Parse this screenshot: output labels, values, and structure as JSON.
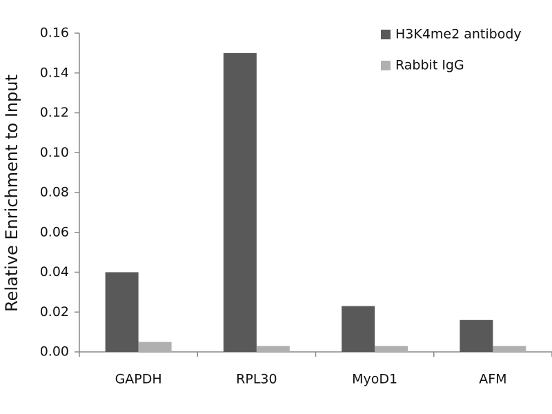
{
  "chart_data": {
    "type": "bar",
    "y_label": "Relative Enrichment to Input",
    "categories": [
      "GAPDH",
      "RPL30",
      "MyoD1",
      "AFM"
    ],
    "series": [
      {
        "name": "H3K4me2 antibody",
        "color": "#595959",
        "values": [
          0.04,
          0.15,
          0.023,
          0.016
        ]
      },
      {
        "name": "Rabbit IgG",
        "color": "#b0b0b0",
        "values": [
          0.005,
          0.003,
          0.003,
          0.003
        ]
      }
    ],
    "ylim": [
      0,
      0.16
    ],
    "yticks": [
      {
        "value": 0,
        "label": "0.00"
      },
      {
        "value": 0.02,
        "label": "0.02"
      },
      {
        "value": 0.04,
        "label": "0.04"
      },
      {
        "value": 0.06,
        "label": "0.06"
      },
      {
        "value": 0.08,
        "label": "0.08"
      },
      {
        "value": 0.1,
        "label": "0.10"
      },
      {
        "value": 0.12,
        "label": "0.12"
      },
      {
        "value": 0.14,
        "label": "0.14"
      },
      {
        "value": 0.16,
        "label": "0.16"
      }
    ],
    "legend": "top-right"
  }
}
